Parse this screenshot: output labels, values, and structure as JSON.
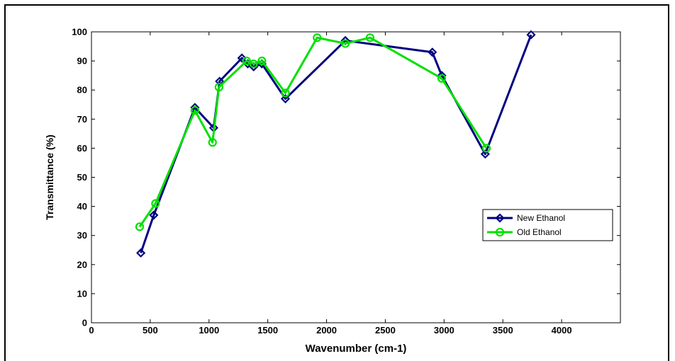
{
  "chart_data": {
    "type": "line",
    "title": "",
    "xlabel": "Wavenumber (cm-1)",
    "ylabel": "Transmittance (%)",
    "xlim": [
      0,
      4500
    ],
    "ylim": [
      0,
      100
    ],
    "xticks": [
      0,
      500,
      1000,
      1500,
      2000,
      2500,
      3000,
      3500,
      4000
    ],
    "yticks": [
      0,
      10,
      20,
      30,
      40,
      50,
      60,
      70,
      80,
      90,
      100
    ],
    "grid": false,
    "legend_position": "right",
    "series": [
      {
        "name": "New Ethanol",
        "color": "#000080",
        "marker": "diamond",
        "x": [
          420,
          530,
          880,
          1040,
          1090,
          1280,
          1330,
          1380,
          1450,
          1650,
          2160,
          2900,
          2980,
          3350,
          3740
        ],
        "y": [
          24,
          37,
          74,
          67,
          83,
          91,
          89,
          88,
          89,
          77,
          97,
          93,
          85,
          58,
          99
        ]
      },
      {
        "name": "Old Ethanol",
        "color": "#00E000",
        "marker": "circle",
        "x": [
          410,
          545,
          880,
          1030,
          1085,
          1320,
          1380,
          1450,
          1650,
          1920,
          2160,
          2370,
          2980,
          3360
        ],
        "y": [
          33,
          41,
          73,
          62,
          81,
          90,
          89,
          90,
          79,
          98,
          96,
          98,
          84,
          60
        ]
      }
    ]
  }
}
